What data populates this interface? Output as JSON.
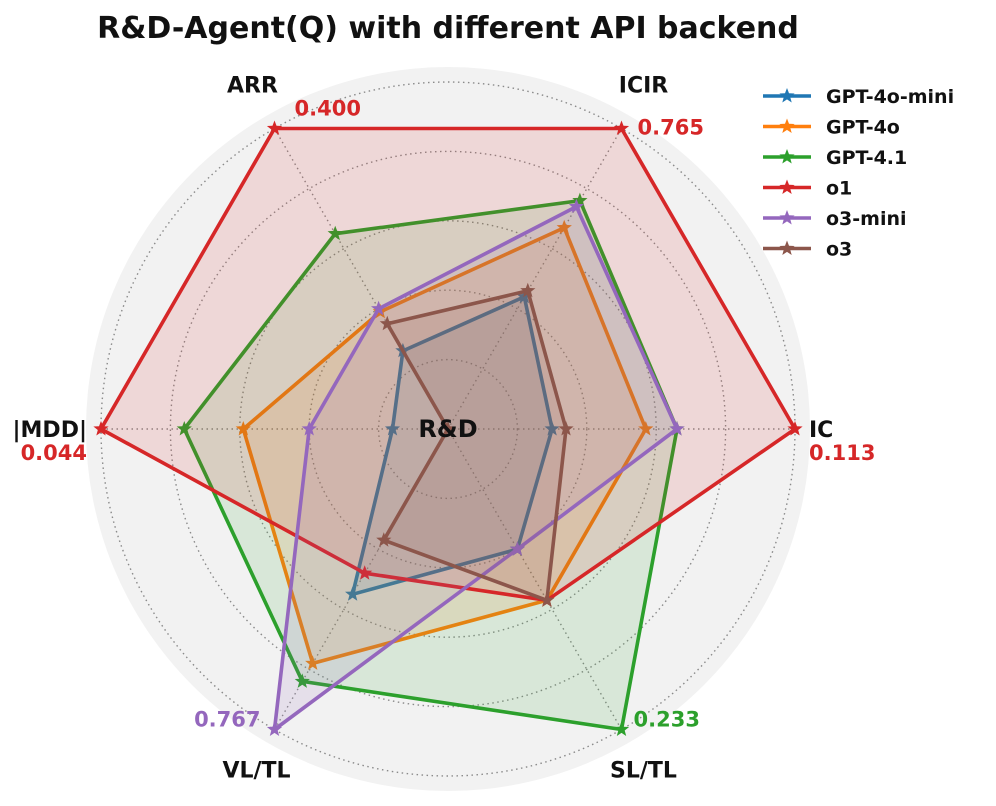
{
  "chart_data": {
    "type": "radar",
    "title": "R&D-Agent(Q) with different API backend",
    "center_label": "R&D",
    "axes": [
      "IC",
      "ICIR",
      "ARR",
      "|MDD|",
      "VL/TL",
      "SL/TL"
    ],
    "axis_max_labels": [
      {
        "axis": "IC",
        "text": "0.113",
        "color": "#d62728"
      },
      {
        "axis": "ICIR",
        "text": "0.765",
        "color": "#d62728"
      },
      {
        "axis": "ARR",
        "text": "0.400",
        "color": "#d62728"
      },
      {
        "axis": "|MDD|",
        "text": "0.044",
        "color": "#d62728"
      },
      {
        "axis": "VL/TL",
        "text": "0.767",
        "color": "#9467bd"
      },
      {
        "axis": "SL/TL",
        "text": "0.233",
        "color": "#2ca02c"
      }
    ],
    "rlim": [
      0,
      1
    ],
    "grid": true,
    "legend_position": "top-right",
    "series": [
      {
        "name": "GPT-4o-mini",
        "color": "#1f77b4",
        "values": [
          0.3,
          0.44,
          0.26,
          0.16,
          0.55,
          0.4
        ]
      },
      {
        "name": "GPT-4o",
        "color": "#ff7f0e",
        "values": [
          0.57,
          0.67,
          0.39,
          0.59,
          0.78,
          0.57
        ]
      },
      {
        "name": "GPT-4.1",
        "color": "#2ca02c",
        "values": [
          0.66,
          0.76,
          0.65,
          0.76,
          0.84,
          1.0
        ]
      },
      {
        "name": "o1",
        "color": "#d62728",
        "values": [
          1.0,
          1.0,
          1.0,
          1.0,
          0.48,
          0.57
        ]
      },
      {
        "name": "o3-mini",
        "color": "#9467bd",
        "values": [
          0.66,
          0.74,
          0.4,
          0.4,
          1.0,
          0.4
        ]
      },
      {
        "name": "o3",
        "color": "#8c564b",
        "values": [
          0.34,
          0.46,
          0.35,
          0.0,
          0.37,
          0.57
        ]
      }
    ]
  }
}
